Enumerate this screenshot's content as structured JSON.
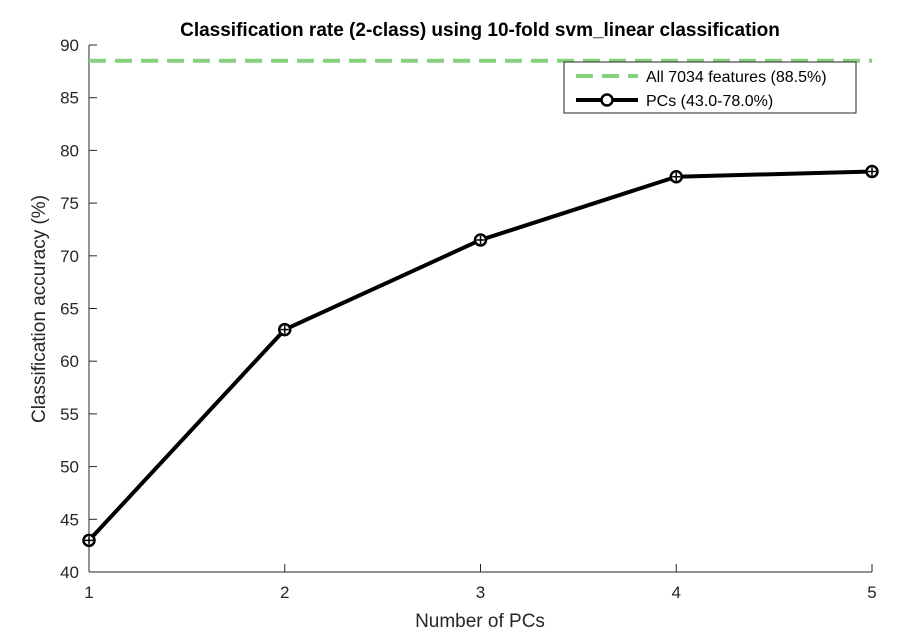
{
  "chart_data": {
    "type": "line",
    "title": "Classification rate (2-class) using 10-fold svm_linear classification",
    "xlabel": "Number of PCs",
    "ylabel": "Classification accuracy (%)",
    "xlim": [
      1,
      5
    ],
    "ylim": [
      40,
      90
    ],
    "xticks": [
      "1",
      "2",
      "3",
      "4",
      "5"
    ],
    "yticks": [
      "40",
      "45",
      "50",
      "55",
      "60",
      "65",
      "70",
      "75",
      "80",
      "85",
      "90"
    ],
    "grid": false,
    "legend_position": "top-right",
    "series": [
      {
        "name": "All 7034 features (88.5%)",
        "style": "dashed",
        "color": "#88d17e",
        "x": [
          1,
          5
        ],
        "values": [
          88.5,
          88.5
        ]
      },
      {
        "name": "PCs (43.0-78.0%)",
        "style": "solid-marker",
        "color": "#000000",
        "x": [
          1,
          2,
          3,
          4,
          5
        ],
        "values": [
          43.0,
          63.0,
          71.5,
          77.5,
          78.0
        ]
      }
    ]
  }
}
